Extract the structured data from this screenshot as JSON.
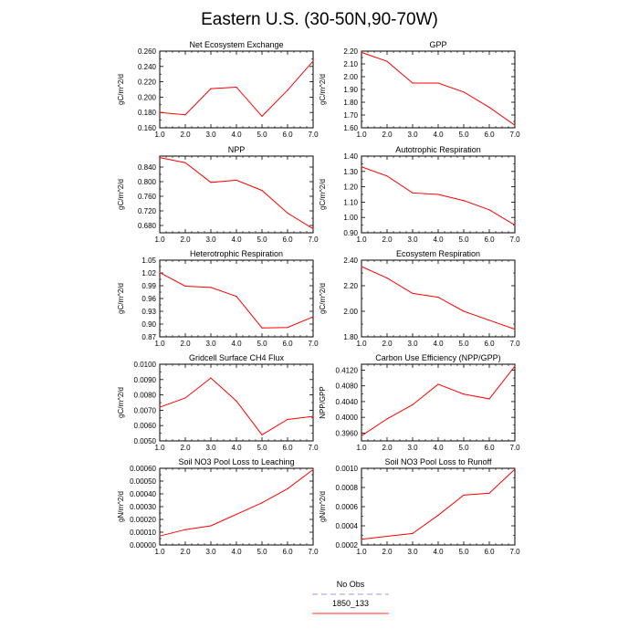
{
  "page_title": "Eastern U.S. (30-50N,90-70W)",
  "legend": {
    "entries": [
      {
        "label": "No Obs",
        "color": "#9999ee",
        "dash": true
      },
      {
        "label": "1850_133",
        "color": "#ff3333",
        "dash": false
      }
    ]
  },
  "chart_data": [
    {
      "type": "line",
      "title": "Net Ecosystem Exchange",
      "ylabel": "gC/m^2/d",
      "x": [
        1,
        2,
        3,
        4,
        5,
        6,
        7
      ],
      "xlim": [
        1,
        7
      ],
      "xticks": [
        "1.0",
        "2.0",
        "3.0",
        "4.0",
        "5.0",
        "6.0",
        "7.0"
      ],
      "ylim": [
        0.16,
        0.26
      ],
      "yticks": [
        "0.160",
        "0.180",
        "0.200",
        "0.220",
        "0.240",
        "0.260"
      ],
      "series": [
        {
          "color": "#ff0000",
          "values": [
            0.18,
            0.177,
            0.211,
            0.213,
            0.175,
            0.209,
            0.247
          ]
        }
      ]
    },
    {
      "type": "line",
      "title": "GPP",
      "ylabel": "gC/m^2/d",
      "x": [
        1,
        2,
        3,
        4,
        5,
        6,
        7
      ],
      "xlim": [
        1,
        7
      ],
      "xticks": [
        "1.0",
        "2.0",
        "3.0",
        "4.0",
        "5.0",
        "6.0",
        "7.0"
      ],
      "ylim": [
        1.6,
        2.2
      ],
      "yticks": [
        "1.60",
        "1.70",
        "1.80",
        "1.90",
        "2.00",
        "2.10",
        "2.20"
      ],
      "series": [
        {
          "color": "#ff0000",
          "values": [
            2.19,
            2.12,
            1.95,
            1.95,
            1.88,
            1.76,
            1.62
          ]
        }
      ]
    },
    {
      "type": "line",
      "title": "NPP",
      "ylabel": "gC/m^2/d",
      "x": [
        1,
        2,
        3,
        4,
        5,
        6,
        7
      ],
      "xlim": [
        1,
        7
      ],
      "xticks": [
        "1.0",
        "2.0",
        "3.0",
        "4.0",
        "5.0",
        "6.0",
        "7.0"
      ],
      "ylim": [
        0.66,
        0.87
      ],
      "yticks": [
        "0.680",
        "0.720",
        "0.760",
        "0.800",
        "0.840"
      ],
      "series": [
        {
          "color": "#ff0000",
          "values": [
            0.866,
            0.852,
            0.798,
            0.804,
            0.776,
            0.714,
            0.671
          ]
        }
      ]
    },
    {
      "type": "line",
      "title": "Autotrophic Respiration",
      "ylabel": "gC/m^2/d",
      "x": [
        1,
        2,
        3,
        4,
        5,
        6,
        7
      ],
      "xlim": [
        1,
        7
      ],
      "xticks": [
        "1.0",
        "2.0",
        "3.0",
        "4.0",
        "5.0",
        "6.0",
        "7.0"
      ],
      "ylim": [
        0.9,
        1.4
      ],
      "yticks": [
        "0.90",
        "1.00",
        "1.10",
        "1.20",
        "1.30",
        "1.40"
      ],
      "series": [
        {
          "color": "#ff0000",
          "values": [
            1.33,
            1.27,
            1.16,
            1.15,
            1.11,
            1.05,
            0.95
          ]
        }
      ]
    },
    {
      "type": "line",
      "title": "Heterotrophic Respiration",
      "ylabel": "gC/m^2/d",
      "x": [
        1,
        2,
        3,
        4,
        5,
        6,
        7
      ],
      "xlim": [
        1,
        7
      ],
      "xticks": [
        "1.0",
        "2.0",
        "3.0",
        "4.0",
        "5.0",
        "6.0",
        "7.0"
      ],
      "ylim": [
        0.87,
        1.05
      ],
      "yticks": [
        "0.87",
        "0.90",
        "0.93",
        "0.96",
        "0.99",
        "1.02",
        "1.05"
      ],
      "series": [
        {
          "color": "#ff0000",
          "values": [
            1.021,
            0.989,
            0.986,
            0.965,
            0.891,
            0.892,
            0.917
          ]
        }
      ]
    },
    {
      "type": "line",
      "title": "Ecosystem Respiration",
      "ylabel": "gC/m^2/d",
      "x": [
        1,
        2,
        3,
        4,
        5,
        6,
        7
      ],
      "xlim": [
        1,
        7
      ],
      "xticks": [
        "1.0",
        "2.0",
        "3.0",
        "4.0",
        "5.0",
        "6.0",
        "7.0"
      ],
      "ylim": [
        1.8,
        2.4
      ],
      "yticks": [
        "1.80",
        "2.00",
        "2.20",
        "2.40"
      ],
      "series": [
        {
          "color": "#ff0000",
          "values": [
            2.35,
            2.26,
            2.14,
            2.11,
            2.0,
            1.93,
            1.86
          ]
        }
      ]
    },
    {
      "type": "line",
      "title": "Gridcell Surface CH4 Flux",
      "ylabel": "gC/m^2/d",
      "x": [
        1,
        2,
        3,
        4,
        5,
        6,
        7
      ],
      "xlim": [
        1,
        7
      ],
      "xticks": [
        "1.0",
        "2.0",
        "3.0",
        "4.0",
        "5.0",
        "6.0",
        "7.0"
      ],
      "ylim": [
        0.005,
        0.01
      ],
      "yticks": [
        "0.0050",
        "0.0060",
        "0.0070",
        "0.0080",
        "0.0090",
        "0.0100"
      ],
      "series": [
        {
          "color": "#ff0000",
          "values": [
            0.0072,
            0.0078,
            0.0091,
            0.0076,
            0.0054,
            0.0064,
            0.0066
          ]
        }
      ]
    },
    {
      "type": "line",
      "title": "Carbon Use Efficiency (NPP/GPP)",
      "ylabel": "NPP/GPP",
      "x": [
        1,
        2,
        3,
        4,
        5,
        6,
        7
      ],
      "xlim": [
        1,
        7
      ],
      "xticks": [
        "1.0",
        "2.0",
        "3.0",
        "4.0",
        "5.0",
        "6.0",
        "7.0"
      ],
      "ylim": [
        0.394,
        0.4135
      ],
      "yticks": [
        "0.3960",
        "0.4000",
        "0.4040",
        "0.4080",
        "0.4120"
      ],
      "series": [
        {
          "color": "#ff0000",
          "values": [
            0.3953,
            0.3996,
            0.4032,
            0.4084,
            0.4059,
            0.4047,
            0.413
          ]
        }
      ]
    },
    {
      "type": "line",
      "title": "Soil NO3 Pool Loss to Leaching",
      "ylabel": "gN/m^2/d",
      "x": [
        1,
        2,
        3,
        4,
        5,
        6,
        7
      ],
      "xlim": [
        1,
        7
      ],
      "xticks": [
        "1.0",
        "2.0",
        "3.0",
        "4.0",
        "5.0",
        "6.0",
        "7.0"
      ],
      "ylim": [
        0,
        0.0006
      ],
      "yticks": [
        "0.00000",
        "0.00010",
        "0.00020",
        "0.00030",
        "0.00040",
        "0.00050",
        "0.00060"
      ],
      "series": [
        {
          "color": "#ff0000",
          "values": [
            7e-05,
            0.00012,
            0.00015,
            0.00024,
            0.00033,
            0.00044,
            0.00059
          ]
        }
      ]
    },
    {
      "type": "line",
      "title": "Soil NO3 Pool Loss to Runoff",
      "ylabel": "gN/m^2/d",
      "x": [
        1,
        2,
        3,
        4,
        5,
        6,
        7
      ],
      "xlim": [
        1,
        7
      ],
      "xticks": [
        "1.0",
        "2.0",
        "3.0",
        "4.0",
        "5.0",
        "6.0",
        "7.0"
      ],
      "ylim": [
        0.0002,
        0.001
      ],
      "yticks": [
        "0.0002",
        "0.0004",
        "0.0006",
        "0.0008",
        "0.0010"
      ],
      "series": [
        {
          "color": "#ff0000",
          "values": [
            0.00026,
            0.00029,
            0.00032,
            0.00051,
            0.00072,
            0.00074,
            0.00099
          ]
        }
      ]
    }
  ]
}
